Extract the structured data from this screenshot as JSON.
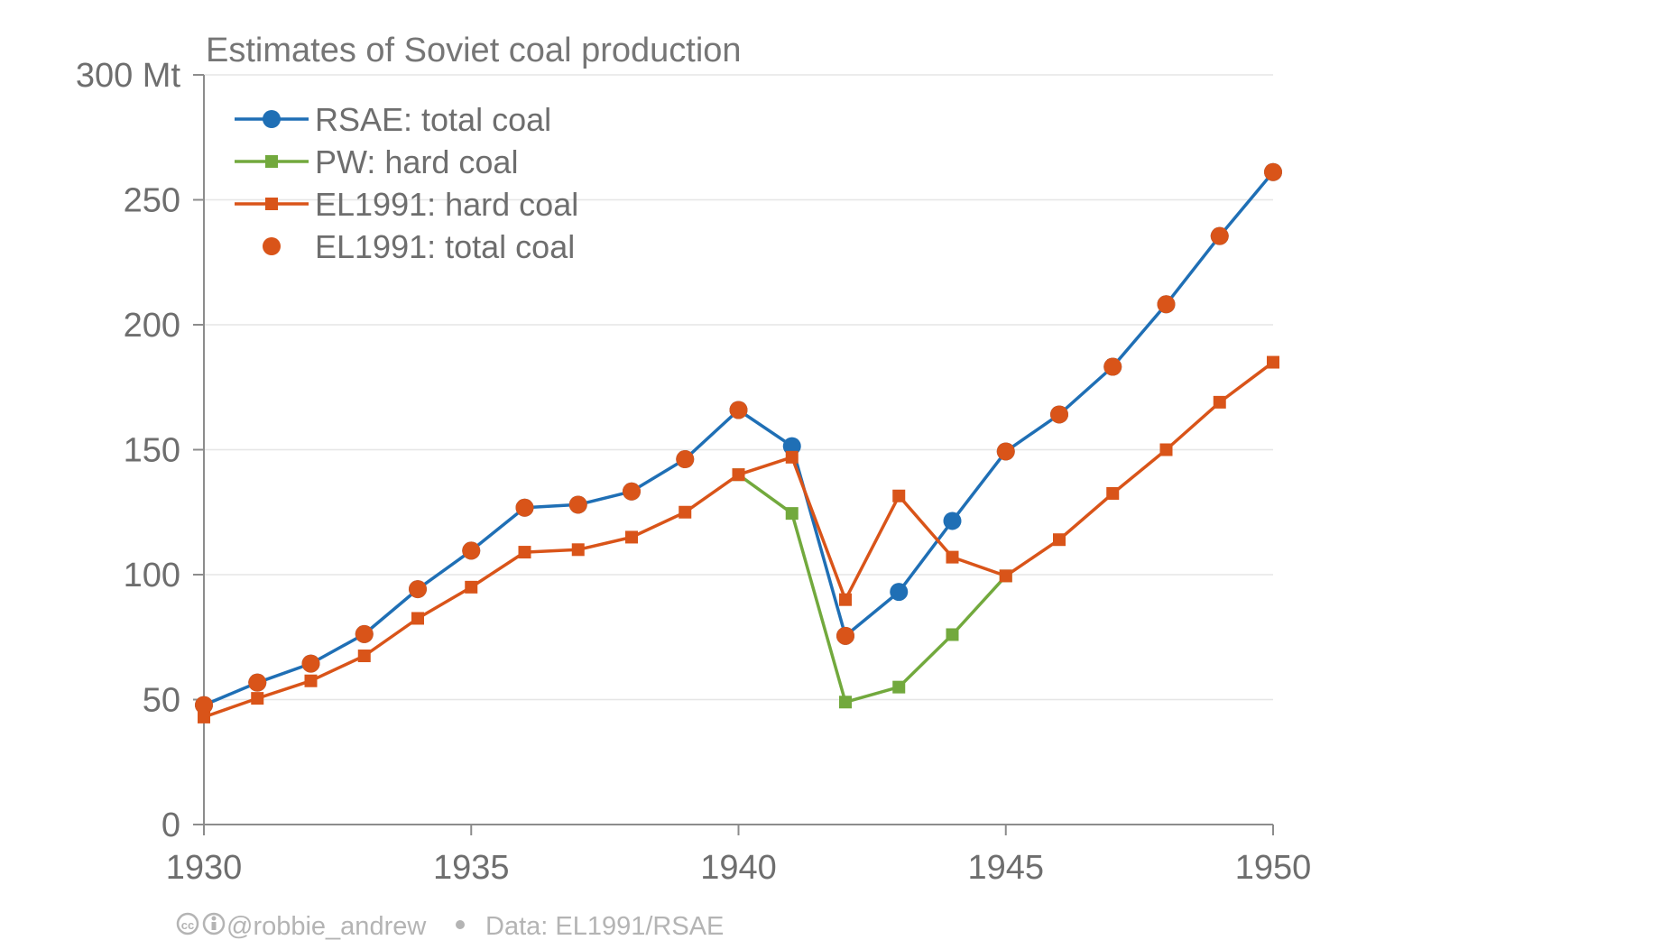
{
  "chart_data": {
    "type": "line",
    "title": "Estimates of Soviet coal production",
    "xlabel": "",
    "ylabel": "",
    "xlim": [
      1930,
      1950
    ],
    "ylim": [
      0,
      300
    ],
    "x_ticks": [
      "1930",
      "1935",
      "1940",
      "1945",
      "1950"
    ],
    "x_tick_values": [
      1930,
      1935,
      1940,
      1945,
      1950
    ],
    "y_ticks": [
      "0",
      "50",
      "100",
      "150",
      "200",
      "250",
      "300 Mt"
    ],
    "y_tick_values": [
      0,
      50,
      100,
      150,
      200,
      250,
      300
    ],
    "grid": "horizontal",
    "legend_position": "top-left",
    "series": [
      {
        "name": "RSAE: total coal",
        "color": "#1f6fb5",
        "marker": "circle",
        "line": true,
        "x": [
          1930,
          1931,
          1932,
          1933,
          1934,
          1935,
          1936,
          1937,
          1938,
          1939,
          1940,
          1941,
          1942,
          1943,
          1944,
          1945,
          1946,
          1947,
          1948,
          1949,
          1950
        ],
        "values": [
          47.8,
          56.8,
          64.4,
          76.2,
          94.2,
          109.6,
          126.8,
          128.0,
          133.3,
          146.2,
          165.9,
          151.4,
          75.5,
          93.1,
          121.5,
          149.3,
          164.1,
          183.2,
          208.2,
          235.5,
          261.1
        ]
      },
      {
        "name": "PW: hard coal",
        "color": "#72a93d",
        "marker": "square",
        "line": true,
        "x": [
          1940,
          1941,
          1942,
          1943,
          1944,
          1945
        ],
        "values": [
          140.0,
          124.5,
          49.0,
          55.0,
          76.0,
          99.5
        ]
      },
      {
        "name": "EL1991: hard coal",
        "color": "#d95419",
        "marker": "square",
        "line": true,
        "x": [
          1930,
          1931,
          1932,
          1933,
          1934,
          1935,
          1936,
          1937,
          1938,
          1939,
          1940,
          1941,
          1942,
          1943,
          1944,
          1945,
          1946,
          1947,
          1948,
          1949,
          1950
        ],
        "values": [
          43.0,
          50.5,
          57.5,
          67.5,
          82.5,
          95.0,
          109.0,
          110.0,
          115.0,
          125.0,
          140.0,
          147.0,
          90.0,
          131.5,
          107.0,
          99.5,
          114.0,
          132.5,
          150.0,
          169.0,
          185.0
        ]
      },
      {
        "name": "EL1991: total coal",
        "color": "#d95419",
        "marker": "circle",
        "line": false,
        "x": [
          1930,
          1931,
          1932,
          1933,
          1934,
          1935,
          1936,
          1937,
          1938,
          1939,
          1940,
          1942,
          1945,
          1946,
          1947,
          1948,
          1949,
          1950
        ],
        "values": [
          47.8,
          56.8,
          64.4,
          76.2,
          94.2,
          109.6,
          126.8,
          128.0,
          133.3,
          146.2,
          165.9,
          75.5,
          149.3,
          164.1,
          183.2,
          208.2,
          235.5,
          261.1
        ]
      }
    ]
  },
  "footer": {
    "license_icons": "cc-by-icon",
    "credit": "@robbie_andrew",
    "source": "Data: EL1991/RSAE"
  }
}
